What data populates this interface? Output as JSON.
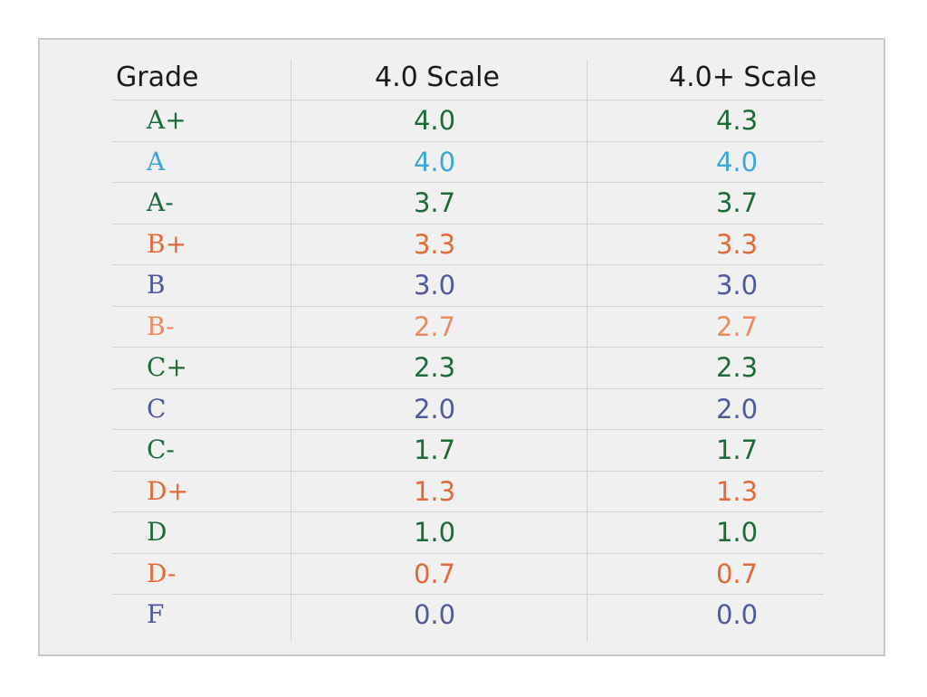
{
  "table": {
    "headers": {
      "grade": "Grade",
      "scale_40": "4.0 Scale",
      "scale_40plus": "4.0+ Scale"
    },
    "rows": [
      {
        "grade": "A+",
        "scale_40": "4.0",
        "scale_40plus": "4.3",
        "color": "#1e6b3a"
      },
      {
        "grade": "A",
        "scale_40": "4.0",
        "scale_40plus": "4.0",
        "color": "#3ba7d6"
      },
      {
        "grade": "A-",
        "scale_40": "3.7",
        "scale_40plus": "3.7",
        "color": "#1e6b3a"
      },
      {
        "grade": "B+",
        "scale_40": "3.3",
        "scale_40plus": "3.3",
        "color": "#e2693a"
      },
      {
        "grade": "B",
        "scale_40": "3.0",
        "scale_40plus": "3.0",
        "color": "#4f5a9e"
      },
      {
        "grade": "B-",
        "scale_40": "2.7",
        "scale_40plus": "2.7",
        "color": "#ec8b62"
      },
      {
        "grade": "C+",
        "scale_40": "2.3",
        "scale_40plus": "2.3",
        "color": "#1e6b3a"
      },
      {
        "grade": "C",
        "scale_40": "2.0",
        "scale_40plus": "2.0",
        "color": "#4f5a9e"
      },
      {
        "grade": "C-",
        "scale_40": "1.7",
        "scale_40plus": "1.7",
        "color": "#1e6b3a"
      },
      {
        "grade": "D+",
        "scale_40": "1.3",
        "scale_40plus": "1.3",
        "color": "#e2693a"
      },
      {
        "grade": "D",
        "scale_40": "1.0",
        "scale_40plus": "1.0",
        "color": "#1e6b3a"
      },
      {
        "grade": "D-",
        "scale_40": "0.7",
        "scale_40plus": "0.7",
        "color": "#e2693a"
      },
      {
        "grade": "F",
        "scale_40": "0.0",
        "scale_40plus": "0.0",
        "color": "#4f5a9e"
      }
    ]
  }
}
